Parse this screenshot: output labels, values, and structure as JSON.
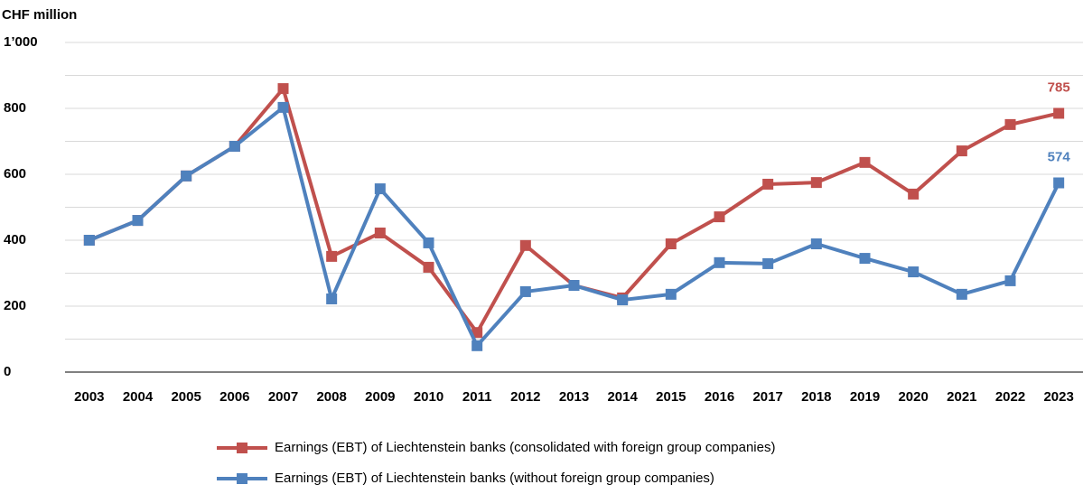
{
  "chart_data": {
    "type": "line",
    "y_axis_label": "CHF million",
    "categories": [
      "2003",
      "2004",
      "2005",
      "2006",
      "2007",
      "2008",
      "2009",
      "2010",
      "2011",
      "2012",
      "2013",
      "2014",
      "2015",
      "2016",
      "2017",
      "2018",
      "2019",
      "2020",
      "2021",
      "2022",
      "2023"
    ],
    "series": [
      {
        "name": "Earnings (EBT) of Liechtenstein banks (consolidated with foreign group companies)",
        "color": "#c0504d",
        "values": [
          400,
          460,
          595,
          685,
          860,
          351,
          422,
          318,
          120,
          384,
          263,
          225,
          389,
          471,
          570,
          575,
          636,
          540,
          671,
          751,
          785
        ]
      },
      {
        "name": "Earnings (EBT) of Liechtenstein banks (without foreign group companies)",
        "color": "#4f81bd",
        "values": [
          400,
          460,
          595,
          685,
          803,
          222,
          556,
          392,
          80,
          244,
          263,
          219,
          236,
          332,
          329,
          389,
          345,
          304,
          236,
          277,
          574
        ]
      }
    ],
    "ylim": [
      0,
      1000
    ],
    "yticks": [
      0,
      200,
      400,
      600,
      800,
      {
        "value": 1000,
        "label": "1’000"
      }
    ],
    "minor_grid": [
      100,
      300,
      500,
      700,
      900
    ],
    "grid": true,
    "legend": "bottom"
  }
}
